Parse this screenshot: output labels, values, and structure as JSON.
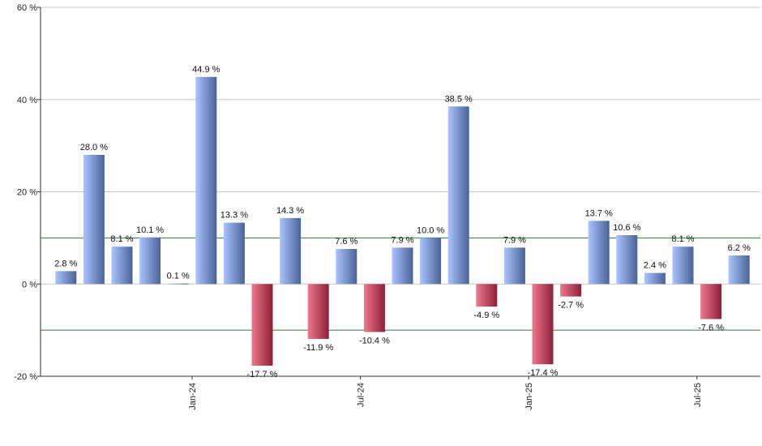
{
  "chart_data": {
    "type": "bar",
    "title": "",
    "xlabel": "",
    "ylabel": "",
    "ylim": [
      -20,
      60
    ],
    "y_ticks": [
      -20,
      0,
      20,
      40,
      60
    ],
    "y_tick_labels": [
      "-20 %",
      "0 %",
      "20 %",
      "40 %",
      "60 %"
    ],
    "y_unit_suffix": " %",
    "grid": true,
    "reference_lines": [
      10,
      -10
    ],
    "values": [
      2.8,
      28.0,
      8.1,
      10.1,
      0.1,
      44.9,
      13.3,
      -17.7,
      14.3,
      -11.9,
      7.6,
      -10.4,
      7.9,
      10.0,
      38.5,
      -4.9,
      7.9,
      -17.4,
      -2.7,
      13.7,
      10.6,
      2.4,
      8.1,
      -7.6,
      6.2
    ],
    "data_labels": [
      "2.8 %",
      "28.0 %",
      "8.1 %",
      "10.1 %",
      "0.1 %",
      "44.9 %",
      "13.3 %",
      "-17.7 %",
      "14.3 %",
      "-11.9 %",
      "7.6 %",
      "-10.4 %",
      "7.9 %",
      "10.0 %",
      "38.5 %",
      "-4.9 %",
      "7.9 %",
      "-17.4 %",
      "-2.7 %",
      "13.7 %",
      "10.6 %",
      "2.4 %",
      "8.1 %",
      "-7.6 %",
      "6.2 %"
    ],
    "x_tick_labels": [
      {
        "after_bar": 4,
        "label": "Jan-24"
      },
      {
        "after_bar": 10,
        "label": "Jul-24"
      },
      {
        "after_bar": 16,
        "label": "Jan-25"
      },
      {
        "after_bar": 22,
        "label": "Jul-25"
      }
    ],
    "colors": {
      "positive_light": "#a9c4ff",
      "positive_dark": "#4a6296",
      "negative_light": "#f0788c",
      "negative_dark": "#8c1f38",
      "grid": "#c8c8c8",
      "reference_line": "#2e7d32",
      "axis": "#333333"
    }
  }
}
